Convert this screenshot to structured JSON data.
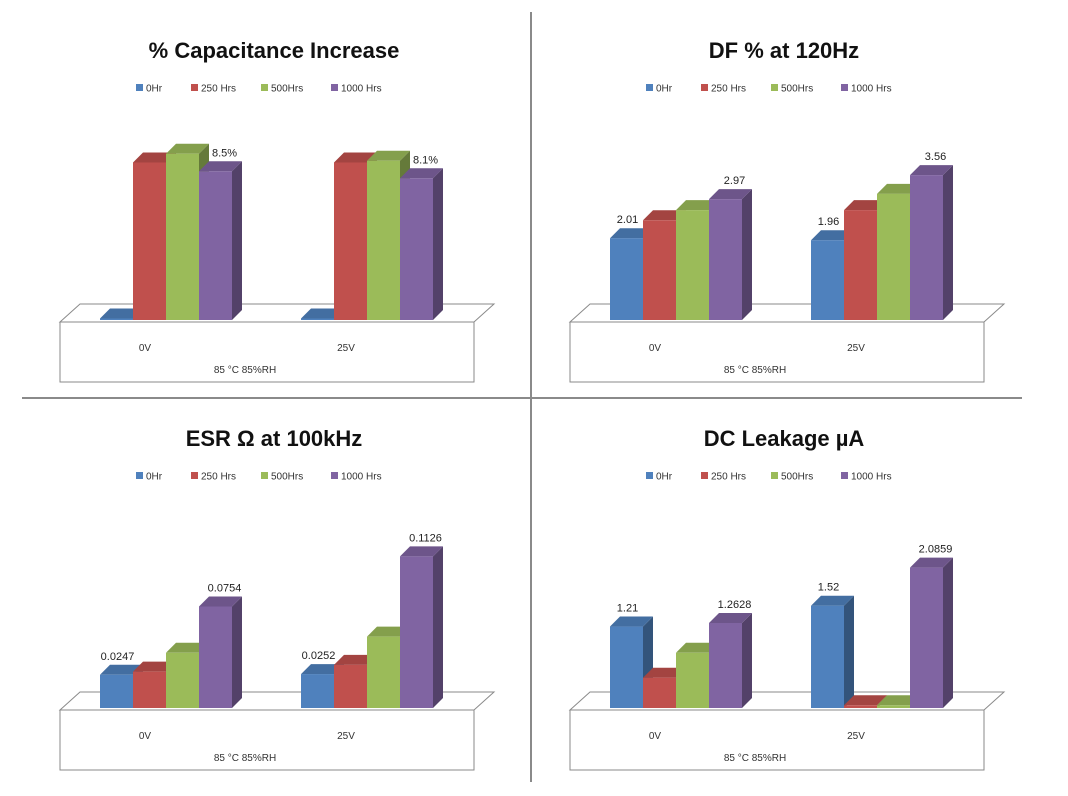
{
  "colors": {
    "series": [
      "#4f81bd",
      "#c0504d",
      "#9bbb59",
      "#8064a2"
    ],
    "panel_border": "#8a8a8a"
  },
  "legend": [
    "0Hr",
    "250 Hrs",
    "500Hrs",
    "1000 Hrs"
  ],
  "chart_data": [
    {
      "type": "bar",
      "title": "% Capacitance Increase",
      "categories": [
        "0V",
        "25V"
      ],
      "group_label": "85 °C 85%RH",
      "ylim": [
        0,
        10
      ],
      "series": [
        {
          "name": "0Hr",
          "values": [
            0,
            0
          ]
        },
        {
          "name": "250 Hrs",
          "values": [
            9.0,
            9.0
          ]
        },
        {
          "name": "500Hrs",
          "values": [
            9.5,
            9.1
          ]
        },
        {
          "name": "1000 Hrs",
          "values": [
            8.5,
            8.1
          ]
        }
      ],
      "data_labels": [
        {
          "series": 3,
          "category": 0,
          "text": "8.5%"
        },
        {
          "series": 3,
          "category": 1,
          "text": "8.1%"
        }
      ]
    },
    {
      "type": "bar",
      "title": "DF % at 120Hz",
      "categories": [
        "0V",
        "25V"
      ],
      "group_label": "85 °C 85%RH",
      "ylim": [
        0,
        4.3
      ],
      "series": [
        {
          "name": "0Hr",
          "values": [
            2.01,
            1.96
          ]
        },
        {
          "name": "250 Hrs",
          "values": [
            2.45,
            2.7
          ]
        },
        {
          "name": "500Hrs",
          "values": [
            2.7,
            3.1
          ]
        },
        {
          "name": "1000 Hrs",
          "values": [
            2.97,
            3.56
          ]
        }
      ],
      "data_labels": [
        {
          "series": 0,
          "category": 0,
          "text": "2.01"
        },
        {
          "series": 3,
          "category": 0,
          "text": "2.97"
        },
        {
          "series": 0,
          "category": 1,
          "text": "1.96"
        },
        {
          "series": 3,
          "category": 1,
          "text": "3.56"
        }
      ]
    },
    {
      "type": "bar",
      "title": "ESR Ω at 100kHz",
      "categories": [
        "0V",
        "25V"
      ],
      "group_label": "85 °C 85%RH",
      "ylim": [
        0,
        0.13
      ],
      "series": [
        {
          "name": "0Hr",
          "values": [
            0.0247,
            0.0252
          ]
        },
        {
          "name": "250 Hrs",
          "values": [
            0.027,
            0.032
          ]
        },
        {
          "name": "500Hrs",
          "values": [
            0.041,
            0.053
          ]
        },
        {
          "name": "1000 Hrs",
          "values": [
            0.0754,
            0.1126
          ]
        }
      ],
      "data_labels": [
        {
          "series": 0,
          "category": 0,
          "text": "0.0247"
        },
        {
          "series": 3,
          "category": 0,
          "text": "0.0754"
        },
        {
          "series": 0,
          "category": 1,
          "text": "0.0252"
        },
        {
          "series": 3,
          "category": 1,
          "text": "0.1126"
        }
      ]
    },
    {
      "type": "bar",
      "title": "DC Leakage µA",
      "categories": [
        "0V",
        "25V"
      ],
      "group_label": "85 °C 85%RH",
      "ylim": [
        0,
        2.6
      ],
      "series": [
        {
          "name": "0Hr",
          "values": [
            1.21,
            1.52
          ]
        },
        {
          "name": "250 Hrs",
          "values": [
            0.45,
            0.04
          ]
        },
        {
          "name": "500Hrs",
          "values": [
            0.82,
            0.04
          ]
        },
        {
          "name": "1000 Hrs",
          "values": [
            1.2628,
            2.0859
          ]
        }
      ],
      "data_labels": [
        {
          "series": 0,
          "category": 0,
          "text": "1.21"
        },
        {
          "series": 3,
          "category": 0,
          "text": "1.2628"
        },
        {
          "series": 0,
          "category": 1,
          "text": "1.52"
        },
        {
          "series": 3,
          "category": 1,
          "text": "2.0859"
        }
      ]
    }
  ]
}
